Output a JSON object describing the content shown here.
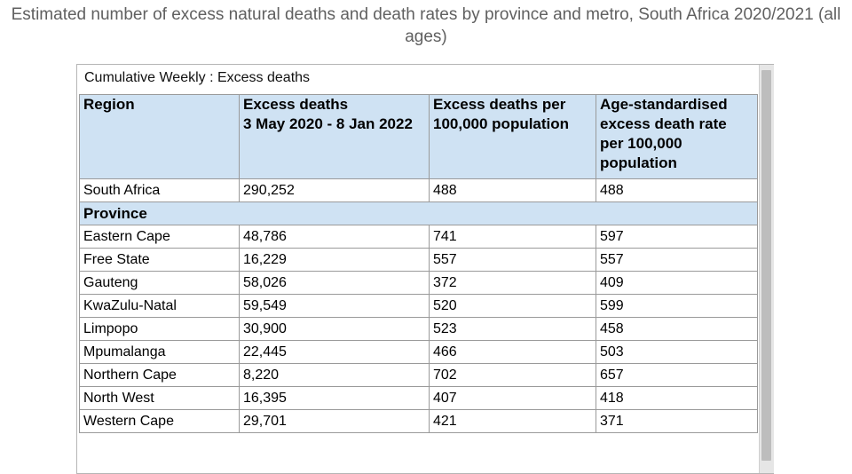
{
  "title": "Estimated number of excess natural deaths and death rates by province and metro, South Africa 2020/2021 (all ages)",
  "caption": "Cumulative Weekly : Excess deaths",
  "columns": [
    "Region",
    "Excess deaths\n3 May 2020 - 8 Jan 2022",
    "Excess deaths per 100,000 population",
    "Age-standardised excess death rate per 100,000 population"
  ],
  "national": {
    "region": "South Africa",
    "excess_deaths": "290,252",
    "per_100k": "488",
    "age_std": "488"
  },
  "province_heading": "Province",
  "provinces": [
    {
      "region": "Eastern Cape",
      "excess_deaths": "48,786",
      "per_100k": "741",
      "age_std": "597"
    },
    {
      "region": "Free State",
      "excess_deaths": "16,229",
      "per_100k": "557",
      "age_std": "557"
    },
    {
      "region": "Gauteng",
      "excess_deaths": "58,026",
      "per_100k": "372",
      "age_std": "409"
    },
    {
      "region": "KwaZulu-Natal",
      "excess_deaths": "59,549",
      "per_100k": "520",
      "age_std": "599"
    },
    {
      "region": "Limpopo",
      "excess_deaths": "30,900",
      "per_100k": "523",
      "age_std": "458"
    },
    {
      "region": "Mpumalanga",
      "excess_deaths": "22,445",
      "per_100k": "466",
      "age_std": "503"
    },
    {
      "region": "Northern Cape",
      "excess_deaths": "8,220",
      "per_100k": "702",
      "age_std": "657"
    },
    {
      "region": "North West",
      "excess_deaths": "16,395",
      "per_100k": "407",
      "age_std": "418"
    },
    {
      "region": "Western Cape",
      "excess_deaths": "29,701",
      "per_100k": "421",
      "age_std": "371"
    }
  ]
}
